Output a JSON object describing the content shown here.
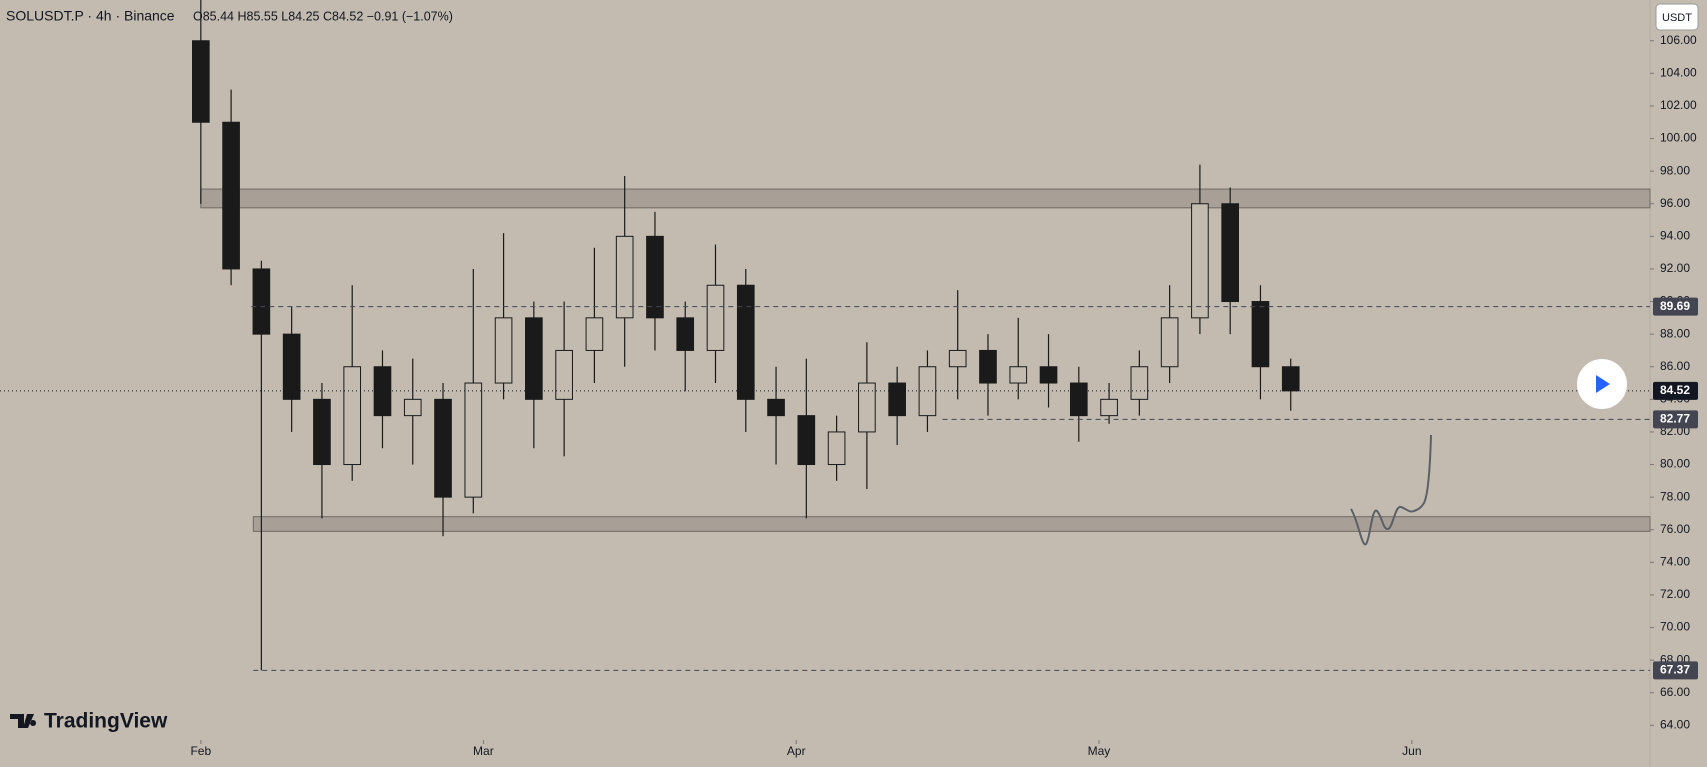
{
  "chart_data": {
    "type": "candlestick",
    "title": "SOLUSDT.P · 4h · Binance",
    "subtitle": "O85.44 H85.55 L84.25 C84.52 −0.91 (−1.07%)",
    "currency_button": "USDT",
    "watermark": "TradingView",
    "color": "#1a1a1a",
    "xlim": [
      -19.9,
      143.6
    ],
    "xticks": [
      {
        "value": 0,
        "label": "Feb"
      },
      {
        "value": 28,
        "label": "Mar"
      },
      {
        "value": 59,
        "label": "Apr"
      },
      {
        "value": 89,
        "label": "May"
      },
      {
        "value": 120,
        "label": "Jun"
      }
    ],
    "ylim": [
      63.1,
      108.5
    ],
    "yticks": [
      {
        "value": 64,
        "label": "64.00"
      },
      {
        "value": 66,
        "label": "66.00"
      },
      {
        "value": 68,
        "label": "68.00"
      },
      {
        "value": 70,
        "label": "70.00"
      },
      {
        "value": 72,
        "label": "72.00"
      },
      {
        "value": 74,
        "label": "74.00"
      },
      {
        "value": 76,
        "label": "76.00"
      },
      {
        "value": 78,
        "label": "78.00"
      },
      {
        "value": 80,
        "label": "80.00"
      },
      {
        "value": 82,
        "label": "82.00"
      },
      {
        "value": 84,
        "label": "84.00"
      },
      {
        "value": 86,
        "label": "86.00"
      },
      {
        "value": 88,
        "label": "88.00"
      },
      {
        "value": 90,
        "label": "90.00"
      },
      {
        "value": 92,
        "label": "92.00"
      },
      {
        "value": 94,
        "label": "94.00"
      },
      {
        "value": 96,
        "label": "96.00"
      },
      {
        "value": 98,
        "label": "98.00"
      },
      {
        "value": 100,
        "label": "100.00"
      },
      {
        "value": 102,
        "label": "102.00"
      },
      {
        "value": 104,
        "label": "104.00"
      },
      {
        "value": 106,
        "label": "106.00"
      }
    ],
    "x": [
      0,
      3,
      6,
      9,
      12,
      15,
      18,
      21,
      24,
      27,
      30,
      33,
      36,
      39,
      42,
      45,
      48,
      51,
      54,
      57,
      60,
      63,
      66,
      69,
      72,
      75,
      78,
      81,
      84,
      87,
      90,
      93,
      96,
      99,
      102,
      105,
      108
    ],
    "ohlc": [
      [
        106,
        108.5,
        96,
        101
      ],
      [
        101,
        103,
        91,
        92
      ],
      [
        92,
        92.5,
        67.37,
        88
      ],
      [
        88,
        89.7,
        82,
        84
      ],
      [
        84,
        85,
        76.7,
        80
      ],
      [
        80,
        91,
        79,
        86
      ],
      [
        86,
        87,
        81,
        83
      ],
      [
        83,
        86.5,
        80,
        84
      ],
      [
        84,
        85,
        75.6,
        78
      ],
      [
        78,
        92,
        77,
        85
      ],
      [
        85,
        94.2,
        84,
        89
      ],
      [
        89,
        90,
        81,
        84
      ],
      [
        84,
        90,
        80.5,
        87
      ],
      [
        87,
        93.3,
        85,
        89
      ],
      [
        89,
        97.7,
        86,
        94
      ],
      [
        94,
        95.5,
        87,
        89
      ],
      [
        89,
        90,
        84.5,
        87
      ],
      [
        87,
        93.5,
        85,
        91
      ],
      [
        91,
        92,
        82,
        84
      ],
      [
        84,
        86,
        80,
        83
      ],
      [
        83,
        86.5,
        76.7,
        80
      ],
      [
        80,
        83,
        79,
        82
      ],
      [
        82,
        87.5,
        78.5,
        85
      ],
      [
        85,
        86,
        81.2,
        83
      ],
      [
        83,
        87,
        82,
        86
      ],
      [
        86,
        90.7,
        84,
        87
      ],
      [
        87,
        88,
        83,
        85
      ],
      [
        85,
        89,
        84,
        86
      ],
      [
        86,
        88,
        83.5,
        85
      ],
      [
        85,
        86,
        81.4,
        83
      ],
      [
        83,
        85,
        82.5,
        84
      ],
      [
        84,
        87,
        83,
        86
      ],
      [
        86,
        91,
        85,
        89
      ],
      [
        89,
        98.4,
        88,
        96
      ],
      [
        96,
        97,
        88,
        90
      ],
      [
        90,
        91,
        84,
        86
      ],
      [
        86,
        86.5,
        83.3,
        84.52
      ]
    ],
    "zones": [
      {
        "low": 95.75,
        "high": 96.9,
        "x_start": 0
      },
      {
        "low": 75.9,
        "high": 76.8,
        "x_start": 5.2
      }
    ],
    "price_lines": [
      {
        "value": 89.69,
        "x_start": 5,
        "style": "dashed",
        "color": "#434651"
      },
      {
        "value": 84.52,
        "x_start": -19.9,
        "style": "dotted",
        "color": "#131722"
      },
      {
        "value": 82.77,
        "x_start": 73.5,
        "style": "dashed",
        "color": "#434651"
      },
      {
        "value": 67.37,
        "x_start": 5.2,
        "style": "dashed",
        "color": "#434651"
      }
    ]
  }
}
